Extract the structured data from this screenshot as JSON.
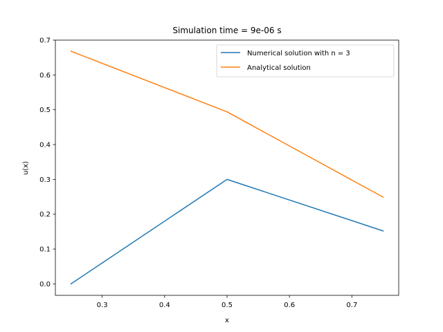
{
  "chart_data": {
    "type": "line",
    "title": "Simulation time = 9e-06 s",
    "xlabel": "x",
    "ylabel": "u(x)",
    "xlim": [
      0.225,
      0.775
    ],
    "ylim": [
      -0.033,
      0.7
    ],
    "xticks": [
      0.3,
      0.4,
      0.5,
      0.6,
      0.7
    ],
    "xtick_labels": [
      "0.3",
      "0.4",
      "0.5",
      "0.6",
      "0.7"
    ],
    "yticks": [
      0.0,
      0.1,
      0.2,
      0.3,
      0.4,
      0.5,
      0.6,
      0.7
    ],
    "ytick_labels": [
      "0.0",
      "0.1",
      "0.2",
      "0.3",
      "0.4",
      "0.5",
      "0.6",
      "0.7"
    ],
    "grid": false,
    "legend_position": "top-right",
    "series": [
      {
        "name": "Numerical solution with n = 3",
        "color": "#1f77b4",
        "x": [
          0.25,
          0.5,
          0.75
        ],
        "y": [
          0.0,
          0.3,
          0.152
        ]
      },
      {
        "name": "Analytical solution",
        "color": "#ff7f0e",
        "x": [
          0.25,
          0.5,
          0.75
        ],
        "y": [
          0.668,
          0.494,
          0.249
        ]
      }
    ]
  }
}
